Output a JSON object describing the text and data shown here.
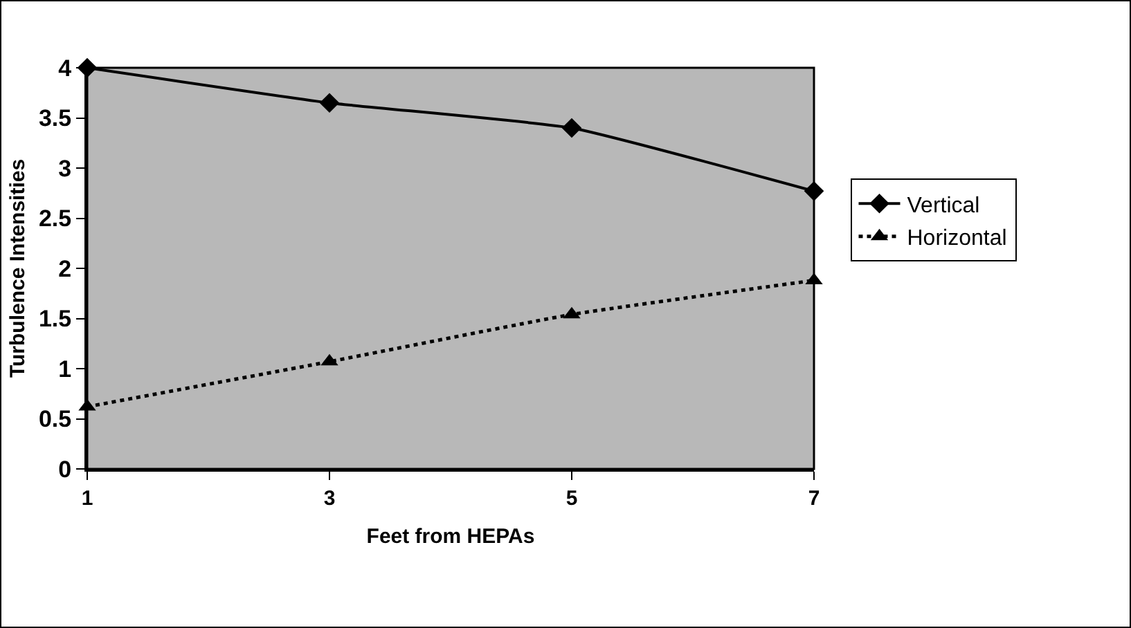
{
  "chart_data": {
    "type": "line",
    "xlabel": "Feet from HEPAs",
    "ylabel": "Turbulence Intensities",
    "x": [
      1,
      3,
      5,
      7
    ],
    "series": [
      {
        "name": "Vertical",
        "color": "#000000",
        "values": [
          4.0,
          3.65,
          3.4,
          2.77
        ],
        "marker": "diamond",
        "line_style": "solid"
      },
      {
        "name": "Horizontal",
        "color": "#000000",
        "values": [
          0.62,
          1.07,
          1.54,
          1.88
        ],
        "marker": "triangle",
        "line_style": "dotted"
      }
    ],
    "xlim": [
      1,
      7
    ],
    "xticks": [
      1,
      3,
      5,
      7
    ],
    "ylim": [
      0,
      4
    ],
    "yticks": [
      0,
      0.5,
      1,
      1.5,
      2,
      2.5,
      3,
      3.5,
      4
    ],
    "grid": false,
    "legend": "right"
  }
}
